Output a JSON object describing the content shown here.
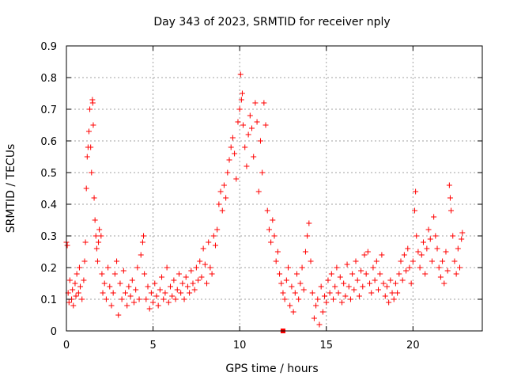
{
  "chart_data": {
    "type": "scatter",
    "title": "Day 343 of 2023, SRMTID for receiver nply",
    "xlabel": "GPS time / hours",
    "ylabel": "SRMTID / TECUs",
    "xlim": [
      0,
      24
    ],
    "ylim": [
      0,
      0.9
    ],
    "xticks": [
      0,
      5,
      10,
      15,
      20
    ],
    "yticks": [
      0,
      0.1,
      0.2,
      0.3,
      0.4,
      0.5,
      0.6,
      0.7,
      0.8,
      0.9
    ],
    "xtick_labels": [
      "0",
      "5",
      "10",
      "15",
      "20"
    ],
    "ytick_labels": [
      "0",
      "0.1",
      "0.2",
      "0.3",
      "0.4",
      "0.5",
      "0.6",
      "0.7",
      "0.8",
      "0.9"
    ],
    "grid": true,
    "marker": "+",
    "color": "#ff0000",
    "series": [
      {
        "name": "SRMTID",
        "points": [
          [
            0.0,
            0.28
          ],
          [
            0.05,
            0.27
          ],
          [
            0.1,
            0.12
          ],
          [
            0.15,
            0.09
          ],
          [
            0.2,
            0.16
          ],
          [
            0.3,
            0.1
          ],
          [
            0.35,
            0.13
          ],
          [
            0.4,
            0.08
          ],
          [
            0.5,
            0.15
          ],
          [
            0.55,
            0.11
          ],
          [
            0.6,
            0.18
          ],
          [
            0.7,
            0.12
          ],
          [
            0.75,
            0.2
          ],
          [
            0.8,
            0.14
          ],
          [
            0.9,
            0.1
          ],
          [
            1.0,
            0.16
          ],
          [
            1.05,
            0.22
          ],
          [
            1.1,
            0.28
          ],
          [
            1.15,
            0.45
          ],
          [
            1.2,
            0.55
          ],
          [
            1.25,
            0.58
          ],
          [
            1.3,
            0.63
          ],
          [
            1.35,
            0.7
          ],
          [
            1.4,
            0.58
          ],
          [
            1.45,
            0.5
          ],
          [
            1.5,
            0.73
          ],
          [
            1.52,
            0.72
          ],
          [
            1.55,
            0.65
          ],
          [
            1.6,
            0.42
          ],
          [
            1.65,
            0.35
          ],
          [
            1.7,
            0.3
          ],
          [
            1.75,
            0.26
          ],
          [
            1.8,
            0.22
          ],
          [
            1.85,
            0.28
          ],
          [
            1.9,
            0.32
          ],
          [
            2.0,
            0.3
          ],
          [
            2.05,
            0.18
          ],
          [
            2.1,
            0.12
          ],
          [
            2.2,
            0.15
          ],
          [
            2.3,
            0.1
          ],
          [
            2.4,
            0.2
          ],
          [
            2.5,
            0.14
          ],
          [
            2.6,
            0.08
          ],
          [
            2.7,
            0.12
          ],
          [
            2.8,
            0.18
          ],
          [
            2.9,
            0.22
          ],
          [
            3.0,
            0.05
          ],
          [
            3.1,
            0.15
          ],
          [
            3.2,
            0.1
          ],
          [
            3.3,
            0.19
          ],
          [
            3.4,
            0.12
          ],
          [
            3.5,
            0.08
          ],
          [
            3.6,
            0.14
          ],
          [
            3.7,
            0.11
          ],
          [
            3.8,
            0.16
          ],
          [
            3.9,
            0.09
          ],
          [
            4.0,
            0.13
          ],
          [
            4.1,
            0.2
          ],
          [
            4.2,
            0.1
          ],
          [
            4.3,
            0.24
          ],
          [
            4.4,
            0.28
          ],
          [
            4.45,
            0.3
          ],
          [
            4.5,
            0.18
          ],
          [
            4.6,
            0.1
          ],
          [
            4.7,
            0.14
          ],
          [
            4.8,
            0.07
          ],
          [
            4.9,
            0.12
          ],
          [
            5.0,
            0.09
          ],
          [
            5.1,
            0.15
          ],
          [
            5.2,
            0.11
          ],
          [
            5.3,
            0.08
          ],
          [
            5.4,
            0.13
          ],
          [
            5.5,
            0.17
          ],
          [
            5.6,
            0.1
          ],
          [
            5.7,
            0.12
          ],
          [
            5.8,
            0.2
          ],
          [
            5.9,
            0.09
          ],
          [
            6.0,
            0.14
          ],
          [
            6.1,
            0.11
          ],
          [
            6.2,
            0.16
          ],
          [
            6.3,
            0.1
          ],
          [
            6.4,
            0.13
          ],
          [
            6.5,
            0.18
          ],
          [
            6.6,
            0.12
          ],
          [
            6.7,
            0.15
          ],
          [
            6.8,
            0.1
          ],
          [
            6.9,
            0.17
          ],
          [
            7.0,
            0.14
          ],
          [
            7.1,
            0.12
          ],
          [
            7.2,
            0.19
          ],
          [
            7.3,
            0.15
          ],
          [
            7.4,
            0.13
          ],
          [
            7.5,
            0.2
          ],
          [
            7.6,
            0.16
          ],
          [
            7.7,
            0.22
          ],
          [
            7.8,
            0.17
          ],
          [
            7.9,
            0.26
          ],
          [
            8.0,
            0.21
          ],
          [
            8.1,
            0.15
          ],
          [
            8.2,
            0.28
          ],
          [
            8.3,
            0.2
          ],
          [
            8.4,
            0.18
          ],
          [
            8.5,
            0.3
          ],
          [
            8.6,
            0.27
          ],
          [
            8.7,
            0.32
          ],
          [
            8.8,
            0.4
          ],
          [
            8.9,
            0.44
          ],
          [
            9.0,
            0.38
          ],
          [
            9.1,
            0.46
          ],
          [
            9.2,
            0.42
          ],
          [
            9.3,
            0.5
          ],
          [
            9.4,
            0.54
          ],
          [
            9.5,
            0.58
          ],
          [
            9.6,
            0.61
          ],
          [
            9.7,
            0.56
          ],
          [
            9.8,
            0.48
          ],
          [
            9.9,
            0.66
          ],
          [
            10.0,
            0.7
          ],
          [
            10.05,
            0.81
          ],
          [
            10.1,
            0.73
          ],
          [
            10.15,
            0.75
          ],
          [
            10.2,
            0.65
          ],
          [
            10.3,
            0.58
          ],
          [
            10.4,
            0.52
          ],
          [
            10.5,
            0.62
          ],
          [
            10.6,
            0.68
          ],
          [
            10.7,
            0.64
          ],
          [
            10.8,
            0.55
          ],
          [
            10.9,
            0.72
          ],
          [
            11.0,
            0.66
          ],
          [
            11.1,
            0.44
          ],
          [
            11.2,
            0.6
          ],
          [
            11.3,
            0.5
          ],
          [
            11.4,
            0.72
          ],
          [
            11.5,
            0.65
          ],
          [
            11.6,
            0.38
          ],
          [
            11.7,
            0.32
          ],
          [
            11.8,
            0.28
          ],
          [
            11.9,
            0.35
          ],
          [
            12.0,
            0.3
          ],
          [
            12.1,
            0.22
          ],
          [
            12.2,
            0.25
          ],
          [
            12.3,
            0.18
          ],
          [
            12.4,
            0.15
          ],
          [
            12.5,
            0.12
          ],
          [
            12.6,
            0.1
          ],
          [
            12.7,
            0.16
          ],
          [
            12.8,
            0.2
          ],
          [
            12.9,
            0.08
          ],
          [
            13.0,
            0.14
          ],
          [
            13.1,
            0.06
          ],
          [
            13.2,
            0.12
          ],
          [
            13.3,
            0.18
          ],
          [
            13.4,
            0.1
          ],
          [
            13.5,
            0.15
          ],
          [
            13.6,
            0.2
          ],
          [
            13.7,
            0.13
          ],
          [
            13.8,
            0.25
          ],
          [
            13.9,
            0.3
          ],
          [
            14.0,
            0.34
          ],
          [
            14.1,
            0.22
          ],
          [
            14.2,
            0.12
          ],
          [
            14.3,
            0.04
          ],
          [
            14.4,
            0.08
          ],
          [
            14.5,
            0.1
          ],
          [
            14.6,
            0.02
          ],
          [
            14.7,
            0.14
          ],
          [
            14.8,
            0.06
          ],
          [
            14.9,
            0.11
          ],
          [
            15.0,
            0.09
          ],
          [
            15.1,
            0.16
          ],
          [
            15.2,
            0.12
          ],
          [
            15.3,
            0.18
          ],
          [
            15.4,
            0.1
          ],
          [
            15.5,
            0.14
          ],
          [
            15.6,
            0.2
          ],
          [
            15.7,
            0.12
          ],
          [
            15.8,
            0.17
          ],
          [
            15.9,
            0.09
          ],
          [
            16.0,
            0.15
          ],
          [
            16.1,
            0.11
          ],
          [
            16.2,
            0.21
          ],
          [
            16.3,
            0.14
          ],
          [
            16.4,
            0.1
          ],
          [
            16.5,
            0.18
          ],
          [
            16.6,
            0.13
          ],
          [
            16.7,
            0.22
          ],
          [
            16.8,
            0.16
          ],
          [
            16.9,
            0.11
          ],
          [
            17.0,
            0.19
          ],
          [
            17.1,
            0.14
          ],
          [
            17.2,
            0.24
          ],
          [
            17.3,
            0.18
          ],
          [
            17.4,
            0.25
          ],
          [
            17.5,
            0.15
          ],
          [
            17.6,
            0.12
          ],
          [
            17.7,
            0.2
          ],
          [
            17.8,
            0.16
          ],
          [
            17.9,
            0.22
          ],
          [
            18.0,
            0.13
          ],
          [
            18.1,
            0.18
          ],
          [
            18.2,
            0.24
          ],
          [
            18.3,
            0.15
          ],
          [
            18.4,
            0.11
          ],
          [
            18.5,
            0.14
          ],
          [
            18.6,
            0.09
          ],
          [
            18.7,
            0.16
          ],
          [
            18.8,
            0.12
          ],
          [
            18.9,
            0.1
          ],
          [
            19.0,
            0.15
          ],
          [
            19.1,
            0.12
          ],
          [
            19.2,
            0.18
          ],
          [
            19.3,
            0.22
          ],
          [
            19.4,
            0.16
          ],
          [
            19.5,
            0.24
          ],
          [
            19.6,
            0.19
          ],
          [
            19.7,
            0.26
          ],
          [
            19.8,
            0.2
          ],
          [
            19.9,
            0.15
          ],
          [
            20.0,
            0.22
          ],
          [
            20.1,
            0.38
          ],
          [
            20.15,
            0.44
          ],
          [
            20.2,
            0.3
          ],
          [
            20.3,
            0.25
          ],
          [
            20.4,
            0.2
          ],
          [
            20.5,
            0.24
          ],
          [
            20.6,
            0.28
          ],
          [
            20.7,
            0.18
          ],
          [
            20.8,
            0.26
          ],
          [
            20.9,
            0.32
          ],
          [
            21.0,
            0.29
          ],
          [
            21.1,
            0.22
          ],
          [
            21.2,
            0.36
          ],
          [
            21.3,
            0.3
          ],
          [
            21.4,
            0.26
          ],
          [
            21.5,
            0.2
          ],
          [
            21.6,
            0.17
          ],
          [
            21.7,
            0.22
          ],
          [
            21.8,
            0.15
          ],
          [
            21.9,
            0.25
          ],
          [
            22.0,
            0.19
          ],
          [
            22.1,
            0.46
          ],
          [
            22.15,
            0.42
          ],
          [
            22.2,
            0.38
          ],
          [
            22.3,
            0.3
          ],
          [
            22.4,
            0.22
          ],
          [
            22.5,
            0.18
          ],
          [
            22.6,
            0.26
          ],
          [
            22.7,
            0.2
          ],
          [
            22.8,
            0.29
          ],
          [
            22.85,
            0.31
          ]
        ]
      }
    ],
    "annotations": [
      {
        "type": "square-marker",
        "x": 12.5,
        "y": 0.0
      }
    ]
  }
}
